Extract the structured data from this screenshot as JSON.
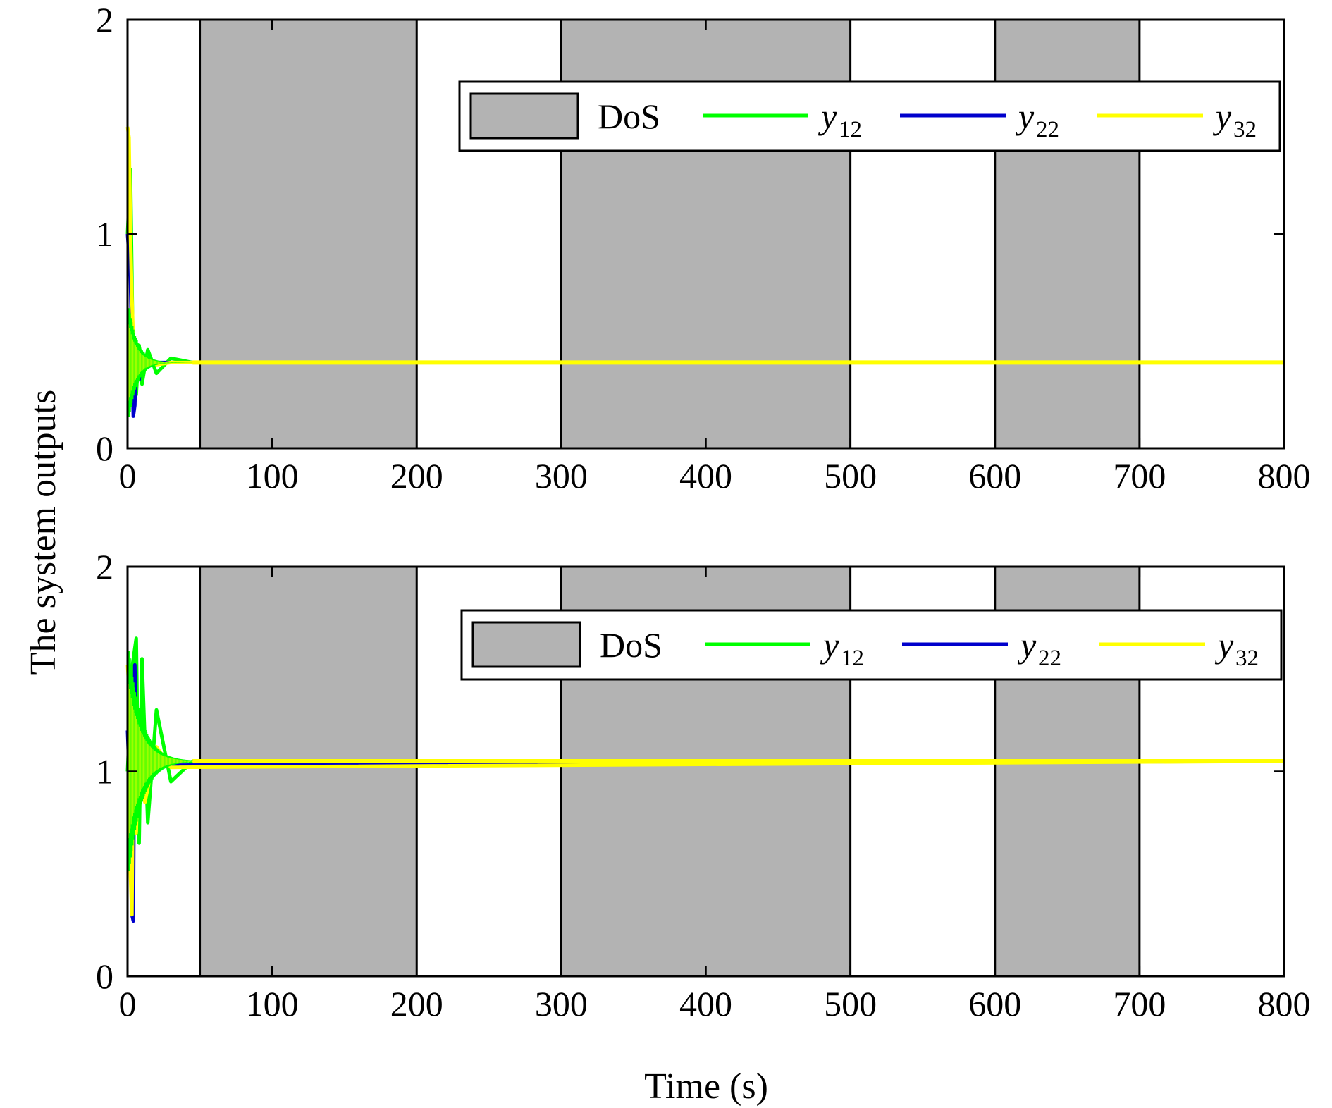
{
  "figure": {
    "ylabel": "The system outputs",
    "xlabel": "Time (s)"
  },
  "colors": {
    "dos_fill": "#b3b3b3",
    "y12": "#00ff00",
    "y22": "#0000ff",
    "y32": "#ffff00",
    "frame": "#000000"
  },
  "legend": {
    "dos_label": "DoS",
    "items": [
      {
        "base": "y",
        "sub": "12",
        "color": "#00ff00"
      },
      {
        "base": "y",
        "sub": "22",
        "color": "#0000cc"
      },
      {
        "base": "y",
        "sub": "32",
        "color": "#ffff00"
      }
    ]
  },
  "chart_data": [
    {
      "type": "line",
      "xlim": [
        0,
        800
      ],
      "ylim": [
        0,
        2
      ],
      "xticks": [
        0,
        100,
        200,
        300,
        400,
        500,
        600,
        700,
        800
      ],
      "yticks": [
        0,
        1,
        2
      ],
      "dos_intervals": [
        [
          50,
          200
        ],
        [
          300,
          500
        ],
        [
          600,
          700
        ]
      ],
      "steady_value": 0.4,
      "series": [
        {
          "name": "y12",
          "x": [
            0,
            2,
            4,
            6,
            8,
            10,
            14,
            20,
            30,
            45,
            800
          ],
          "y": [
            1.0,
            1.3,
            0.3,
            0.25,
            0.48,
            0.3,
            0.46,
            0.35,
            0.42,
            0.4,
            0.4
          ]
        },
        {
          "name": "y22",
          "x": [
            0,
            2,
            3,
            4,
            5,
            6,
            8,
            10,
            14,
            20,
            800
          ],
          "y": [
            1.0,
            0.8,
            0.45,
            0.15,
            0.2,
            0.45,
            0.32,
            0.42,
            0.38,
            0.4,
            0.4
          ]
        },
        {
          "name": "y32",
          "x": [
            0,
            1,
            2,
            3,
            4,
            6,
            8,
            12,
            20,
            30,
            800
          ],
          "y": [
            1.5,
            1.45,
            1.0,
            0.7,
            0.5,
            0.45,
            0.38,
            0.43,
            0.39,
            0.4,
            0.4
          ]
        }
      ]
    },
    {
      "type": "line",
      "xlim": [
        0,
        800
      ],
      "ylim": [
        0,
        2
      ],
      "xticks": [
        0,
        100,
        200,
        300,
        400,
        500,
        600,
        700,
        800
      ],
      "yticks": [
        0,
        1,
        2
      ],
      "dos_intervals": [
        [
          50,
          200
        ],
        [
          300,
          500
        ],
        [
          600,
          700
        ]
      ],
      "steady_value": 1.05,
      "series": [
        {
          "name": "y12",
          "x": [
            0,
            3,
            6,
            8,
            10,
            14,
            20,
            30,
            45,
            800
          ],
          "y": [
            1.0,
            1.5,
            1.65,
            0.65,
            1.55,
            0.75,
            1.3,
            0.95,
            1.05,
            1.05
          ]
        },
        {
          "name": "y22",
          "x": [
            0,
            2,
            3,
            4,
            5,
            6,
            7,
            8,
            10,
            14,
            800
          ],
          "y": [
            1.2,
            0.8,
            0.3,
            0.27,
            1.52,
            1.1,
            1.25,
            0.95,
            1.2,
            1.03,
            1.05
          ]
        },
        {
          "name": "y32",
          "x": [
            0,
            1,
            2,
            3,
            4,
            6,
            8,
            12,
            20,
            30,
            800
          ],
          "y": [
            1.52,
            1.4,
            0.5,
            0.3,
            1.2,
            0.7,
            1.25,
            0.85,
            1.12,
            1.02,
            1.05
          ]
        }
      ]
    }
  ]
}
